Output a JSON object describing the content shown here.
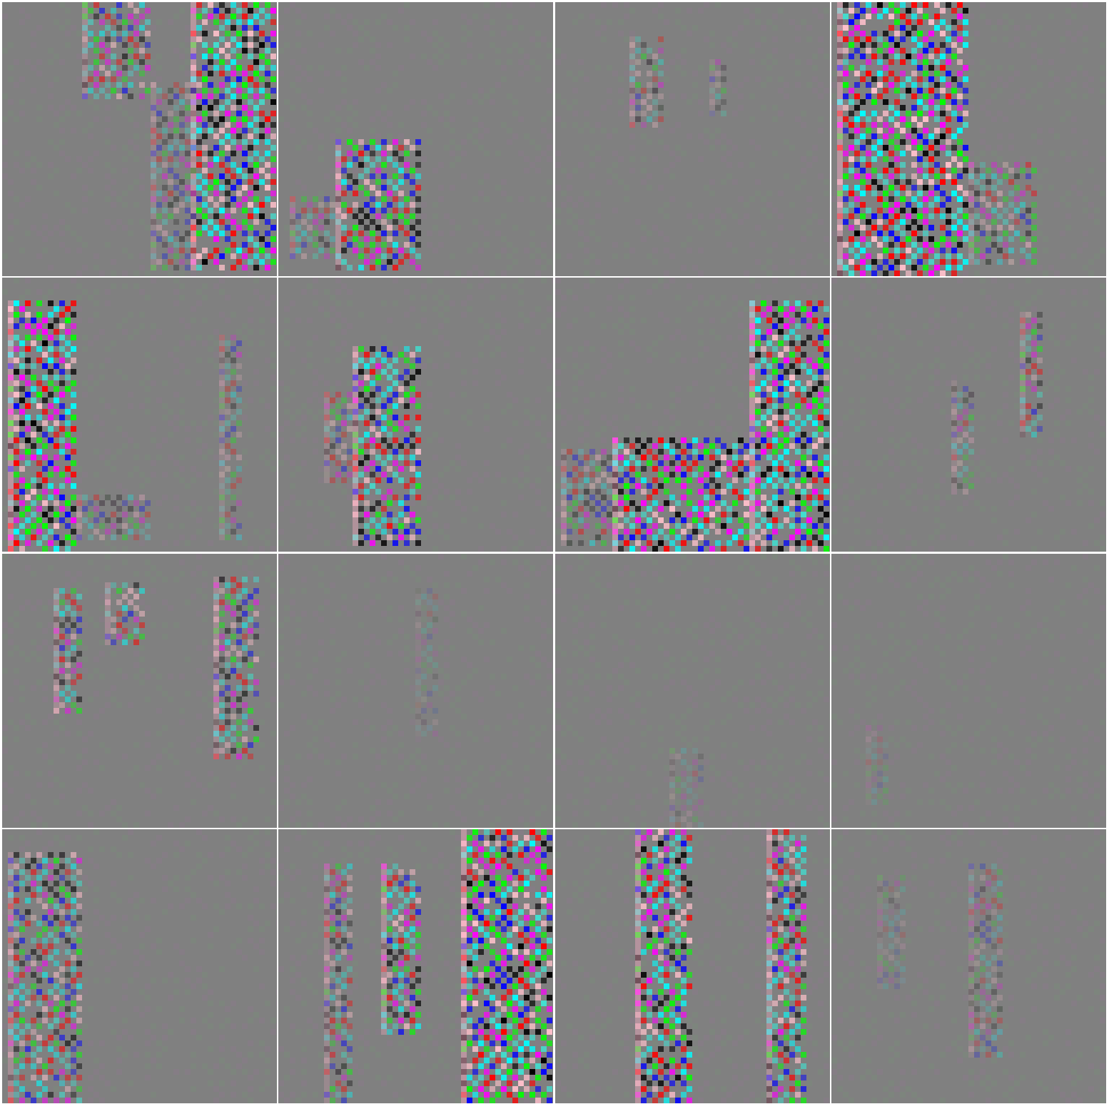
{
  "grid": {
    "rows": 4,
    "cols": 4,
    "background": "#808080",
    "separator_color": "#ffffff",
    "palette": [
      "#808080",
      "#00ff00",
      "#ff00ff",
      "#00ffff",
      "#000000",
      "#0000ff",
      "#ff0000",
      "#ffc0cb",
      "#40e0d0"
    ]
  },
  "tiles": [
    {
      "id": "r1c1",
      "mood": "medium"
    },
    {
      "id": "r1c2",
      "mood": "light"
    },
    {
      "id": "r1c3",
      "mood": "faint"
    },
    {
      "id": "r1c4",
      "mood": "strong"
    },
    {
      "id": "r2c1",
      "mood": "strong"
    },
    {
      "id": "r2c2",
      "mood": "medium"
    },
    {
      "id": "r2c3",
      "mood": "strong"
    },
    {
      "id": "r2c4",
      "mood": "faint"
    },
    {
      "id": "r3c1",
      "mood": "light"
    },
    {
      "id": "r3c2",
      "mood": "very-faint"
    },
    {
      "id": "r3c3",
      "mood": "very-faint"
    },
    {
      "id": "r3c4",
      "mood": "very-faint"
    },
    {
      "id": "r4c1",
      "mood": "light"
    },
    {
      "id": "r4c2",
      "mood": "strong"
    },
    {
      "id": "r4c3",
      "mood": "medium"
    },
    {
      "id": "r4c4",
      "mood": "faint"
    }
  ]
}
